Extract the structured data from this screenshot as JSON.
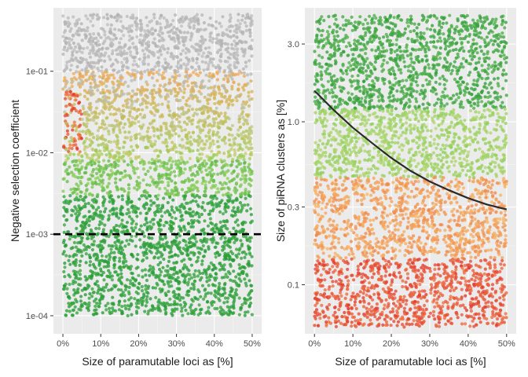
{
  "chart_data": [
    {
      "type": "scatter",
      "xlabel": "Size of paramutable loci as [%]",
      "ylabel": "Negative selection coefficient",
      "x_scale": "linear",
      "y_scale": "log10",
      "xlim": [
        0,
        50
      ],
      "ylim": [
        6e-05,
        0.6
      ],
      "x_ticks": [
        0,
        10,
        20,
        30,
        40,
        50
      ],
      "x_tick_labels": [
        "0%",
        "10%",
        "20%",
        "30%",
        "40%",
        "50%"
      ],
      "y_ticks": [
        0.0001,
        0.001,
        0.01,
        0.1
      ],
      "y_tick_labels": [
        "1e-04",
        "1e-03",
        "1e-02",
        "1e-01"
      ],
      "grid": true,
      "reference_line": {
        "y": 0.001,
        "style": "dashed",
        "color": "#000000"
      },
      "point_summary": {
        "description": "dense uniform cloud of points over x 0-50%",
        "y_range": [
          0.0001,
          0.5
        ],
        "color_bands": [
          {
            "y_range": [
              0.0001,
              0.003
            ],
            "color": "dark green",
            "hex": "#2e9c3a"
          },
          {
            "y_range": [
              0.003,
              0.01
            ],
            "color": "light green",
            "hex": "#8fcf55"
          },
          {
            "y_range": [
              0.01,
              0.1
            ],
            "color": "orange-to-green gradient",
            "hex": "#f0a050"
          },
          {
            "y_range": [
              0.1,
              0.5
            ],
            "color": "grey",
            "hex": "#b5b5b5"
          }
        ],
        "red_cluster": {
          "x_range": [
            0,
            5
          ],
          "y_range": [
            0.01,
            0.06
          ],
          "hex": "#e0342a"
        }
      }
    },
    {
      "type": "scatter",
      "xlabel": "Size of paramutable loci as [%]",
      "ylabel": "Size of piRNA clusters as [%]",
      "x_scale": "linear",
      "y_scale": "log10",
      "xlim": [
        0,
        50
      ],
      "ylim": [
        0.05,
        5
      ],
      "x_ticks": [
        0,
        10,
        20,
        30,
        40,
        50
      ],
      "x_tick_labels": [
        "0%",
        "10%",
        "20%",
        "30%",
        "40%",
        "50%"
      ],
      "y_ticks": [
        0.1,
        0.3,
        1.0,
        3.0
      ],
      "y_tick_labels": [
        "0.1",
        "0.3",
        "1.0",
        "3.0"
      ],
      "grid": true,
      "point_summary": {
        "description": "dense uniform cloud of points over x 0-50%",
        "y_range": [
          0.055,
          4.5
        ],
        "color_bands": [
          {
            "y_range": [
              0.055,
              0.12
            ],
            "color": "red",
            "hex": "#e0402c"
          },
          {
            "y_range": [
              0.12,
              0.35
            ],
            "color": "orange",
            "hex": "#f4a255"
          },
          {
            "y_range": [
              0.35,
              1.2
            ],
            "color": "light green",
            "hex": "#99d45f"
          },
          {
            "y_range": [
              1.2,
              4.5
            ],
            "color": "green",
            "hex": "#3aa33c"
          }
        ]
      },
      "fit_curve": {
        "color": "#2a2a2a",
        "x": [
          0,
          5,
          10,
          15,
          20,
          25,
          30,
          35,
          40,
          45,
          50
        ],
        "y": [
          1.55,
          1.18,
          0.92,
          0.74,
          0.6,
          0.5,
          0.43,
          0.38,
          0.34,
          0.31,
          0.29
        ]
      }
    }
  ]
}
